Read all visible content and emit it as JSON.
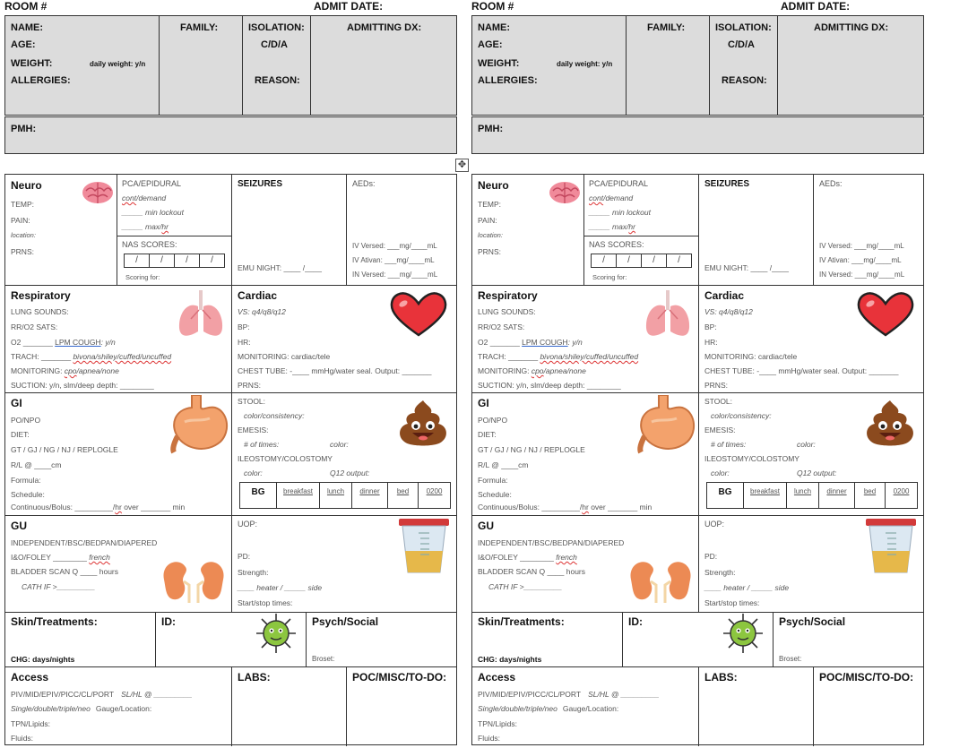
{
  "header": {
    "room": "ROOM #",
    "admit": "ADMIT DATE:"
  },
  "info": {
    "name": "NAME:",
    "age": "AGE:",
    "weight": "WEIGHT:",
    "daily_weight": "daily weight: y/n",
    "allergies": "ALLERGIES:",
    "family": "FAMILY:",
    "isolation": "ISOLATION:",
    "cda": "C/D/A",
    "reason": "REASON:",
    "admitting": "ADMITTING DX:",
    "pmh": "PMH:"
  },
  "neuro": {
    "title": "Neuro",
    "temp": "TEMP:",
    "pain": "PAIN:",
    "location": "location:",
    "prns": "PRNS:"
  },
  "pca": {
    "title": "PCA/EPIDURAL",
    "cont_pre": "",
    "cont_sq": "cont",
    "cont_post": "/demand",
    "lockout": "_____ min lockout",
    "max_pre": "_____ max/",
    "max_sq": "hr",
    "nas": "NAS SCORES:",
    "nas_slash": "/",
    "scoring": "Scoring for:"
  },
  "seizures": {
    "title": "SEIZURES",
    "emu": "EMU NIGHT: ____ /____"
  },
  "aeds": {
    "title": "AEDs:",
    "versed": "IV Versed: ___mg/____mL",
    "ativan": "IV Ativan: ___mg/____mL",
    "in_versed": "IN Versed: ___mg/____mL"
  },
  "resp": {
    "title": "Respiratory",
    "lung": "LUNG SOUNDS:",
    "rr": "RR/O2 SATS:",
    "o2_pre": "O2 _______ ",
    "o2_ul": "LPM COUGH",
    "o2_post": ": y/n",
    "trach_pre": "TRACH: _______ ",
    "trach_sq": "bivona/shiley/cuffed/uncuffed",
    "mon_pre": "MONITORING: ",
    "mon_sq": "cpo",
    "mon_post": "/apnea/none",
    "suction": "SUCTION: y/n, slm/deep depth: ________"
  },
  "cardiac": {
    "title": "Cardiac",
    "vs": "VS: q4/q8/q12",
    "bp": "BP:",
    "hr": "HR:",
    "mon": "MONITORING: cardiac/tele",
    "chest": "CHEST TUBE: -____ mmHg/water seal. Output: _______",
    "prns": "PRNS:"
  },
  "gi": {
    "title": "GI",
    "po": "PO/NPO",
    "diet": "DIET:",
    "tubes": "GT / GJ / NG / NJ / REPLOGLE",
    "rl": "R/L @ ____cm",
    "formula": "Formula:",
    "schedule": "Schedule:",
    "cont_pre": "Continuous/Bolus: _________/",
    "cont_sq": "hr",
    "cont_post": " over _______ min"
  },
  "stool": {
    "stool": "STOOL:",
    "color": "color/consistency:",
    "emesis": "EMESIS:",
    "times": "# of times:",
    "color2": "color:",
    "ileo": "ILEOSTOMY/COLOSTOMY",
    "color3": "color:",
    "q12": "Q12 output:",
    "bg_cols": [
      "BG",
      "breakfast",
      "lunch",
      "dinner",
      "bed",
      "0200"
    ]
  },
  "gu": {
    "title": "GU",
    "indep": "INDEPENDENT/BSC/BEDPAN/DIAPERED",
    "io_pre": "I&O/FOLEY ________ ",
    "io_sq": "french",
    "bladder": "BLADDER SCAN Q ____ hours",
    "cath": "CATH IF >_________"
  },
  "uop": {
    "uop": "UOP:",
    "pd": "PD:",
    "strength": "Strength:",
    "heater": "____ heater / _____ side",
    "start": "Start/stop times:"
  },
  "skin": {
    "title": "Skin/Treatments:",
    "chg": "CHG: days/nights"
  },
  "id": {
    "title": "ID:"
  },
  "psych": {
    "title": "Psych/Social",
    "broset": "Broset:"
  },
  "access": {
    "title": "Access",
    "piv": "PIV/MID/EPIV/PICC/CL/PORT",
    "sl": "SL/HL @ _________",
    "single": "Single/double/triple/neo",
    "gauge": "Gauge/Location:",
    "tpn": "TPN/Lipids:",
    "fluids": "Fluids:"
  },
  "labs": {
    "title": "LABS:"
  },
  "poc": {
    "title": "POC/MISC/TO-DO:"
  },
  "icons": [
    "brain-icon",
    "lungs-icon",
    "heart-icon",
    "stomach-icon",
    "poop-emoji-icon",
    "kidneys-icon",
    "urine-cup-icon",
    "germ-icon",
    "move-handle-icon"
  ],
  "colors": {
    "header_fill": "#dcdcdc",
    "heart": "#e8333a",
    "stomach": "#f3a26c",
    "poop": "#8b4a1e",
    "germ": "#8cc63f",
    "kidney": "#ec8a54"
  }
}
